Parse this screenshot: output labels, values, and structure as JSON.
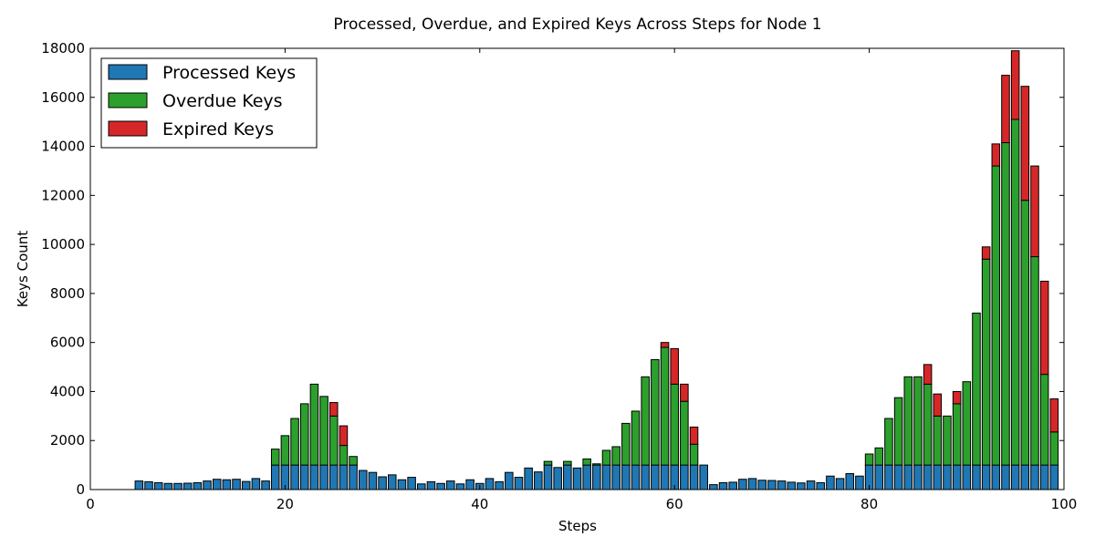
{
  "chart_data": {
    "type": "bar",
    "stacked": true,
    "title": "Processed, Overdue, and Expired Keys Across Steps for Node 1",
    "xlabel": "Steps",
    "ylabel": "Keys Count",
    "xlim": [
      0,
      100
    ],
    "ylim": [
      0,
      18000
    ],
    "xticks": [
      0,
      20,
      40,
      60,
      80,
      100
    ],
    "yticks": [
      0,
      2000,
      4000,
      6000,
      8000,
      10000,
      12000,
      14000,
      16000,
      18000
    ],
    "grid": false,
    "legend_position": "top-left",
    "x": [
      1,
      2,
      3,
      4,
      5,
      6,
      7,
      8,
      9,
      10,
      11,
      12,
      13,
      14,
      15,
      16,
      17,
      18,
      19,
      20,
      21,
      22,
      23,
      24,
      25,
      26,
      27,
      28,
      29,
      30,
      31,
      32,
      33,
      34,
      35,
      36,
      37,
      38,
      39,
      40,
      41,
      42,
      43,
      44,
      45,
      46,
      47,
      48,
      49,
      50,
      51,
      52,
      53,
      54,
      55,
      56,
      57,
      58,
      59,
      60,
      61,
      62,
      63,
      64,
      65,
      66,
      67,
      68,
      69,
      70,
      71,
      72,
      73,
      74,
      75,
      76,
      77,
      78,
      79,
      80,
      81,
      82,
      83,
      84,
      85,
      86,
      87,
      88,
      89,
      90,
      91,
      92,
      93,
      94,
      95,
      96,
      97,
      98,
      99
    ],
    "series": [
      {
        "name": "Processed Keys",
        "color": "#1f77b4",
        "values": [
          0,
          0,
          0,
          0,
          350,
          320,
          280,
          250,
          250,
          260,
          280,
          350,
          420,
          400,
          420,
          330,
          450,
          350,
          1000,
          1000,
          1000,
          1000,
          1000,
          1000,
          1000,
          1000,
          1000,
          780,
          700,
          520,
          600,
          400,
          500,
          230,
          320,
          250,
          350,
          230,
          400,
          250,
          450,
          320,
          700,
          500,
          880,
          720,
          1000,
          900,
          1000,
          880,
          1000,
          1000,
          1000,
          1000,
          1000,
          1000,
          1000,
          1000,
          1000,
          1000,
          1000,
          1000,
          1000,
          200,
          280,
          300,
          420,
          450,
          380,
          370,
          350,
          300,
          270,
          350,
          280,
          550,
          450,
          650,
          550,
          1000,
          1000,
          1000,
          1000,
          1000,
          1000,
          1000,
          1000,
          1000,
          1000,
          1000,
          1000,
          1000,
          1000,
          1000,
          1000,
          1000,
          1000,
          1000,
          1000
        ]
      },
      {
        "name": "Overdue Keys",
        "color": "#2ca02c",
        "values": [
          0,
          0,
          0,
          0,
          0,
          0,
          0,
          0,
          0,
          0,
          0,
          0,
          0,
          0,
          0,
          0,
          0,
          0,
          650,
          1200,
          1900,
          2500,
          3300,
          2800,
          2000,
          800,
          350,
          0,
          0,
          0,
          0,
          0,
          0,
          0,
          0,
          0,
          0,
          0,
          0,
          0,
          0,
          0,
          0,
          0,
          0,
          0,
          150,
          0,
          150,
          0,
          250,
          50,
          600,
          750,
          1700,
          2200,
          3600,
          4300,
          4800,
          3300,
          2600,
          850,
          0,
          0,
          0,
          0,
          0,
          0,
          0,
          0,
          0,
          0,
          0,
          0,
          0,
          0,
          0,
          0,
          0,
          450,
          700,
          1900,
          2750,
          3600,
          3600,
          3300,
          2000,
          2000,
          2500,
          3400,
          6200,
          8400,
          12200,
          13150,
          14100,
          10800,
          8500,
          3700,
          1350
        ]
      },
      {
        "name": "Expired Keys",
        "color": "#d62728",
        "values": [
          0,
          0,
          0,
          0,
          0,
          0,
          0,
          0,
          0,
          0,
          0,
          0,
          0,
          0,
          0,
          0,
          0,
          0,
          0,
          0,
          0,
          0,
          0,
          0,
          550,
          800,
          0,
          0,
          0,
          0,
          0,
          0,
          0,
          0,
          0,
          0,
          0,
          0,
          0,
          0,
          0,
          0,
          0,
          0,
          0,
          0,
          0,
          0,
          0,
          0,
          0,
          0,
          0,
          0,
          0,
          0,
          0,
          0,
          200,
          1450,
          700,
          700,
          0,
          0,
          0,
          0,
          0,
          0,
          0,
          0,
          0,
          0,
          0,
          0,
          0,
          0,
          0,
          0,
          0,
          0,
          0,
          0,
          0,
          0,
          0,
          800,
          900,
          0,
          500,
          0,
          0,
          500,
          900,
          2750,
          2800,
          4650,
          3700,
          3800,
          1350
        ]
      }
    ]
  }
}
